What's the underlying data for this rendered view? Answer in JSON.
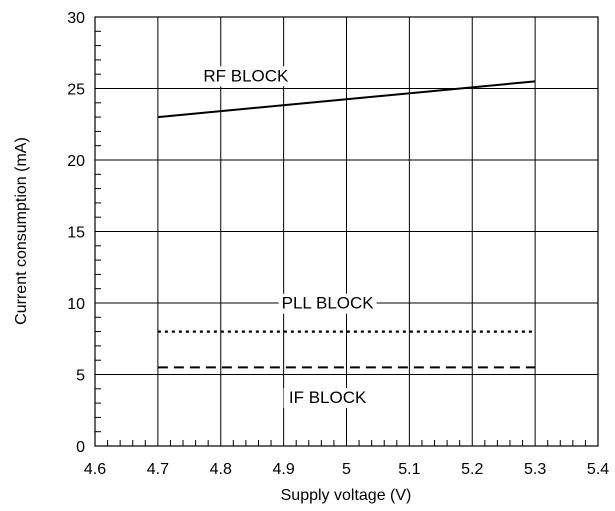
{
  "chart_data": {
    "type": "line",
    "title": "",
    "xlabel": "Supply voltage (V)",
    "ylabel": "Current consumption (mA)",
    "xlim": [
      4.6,
      5.4
    ],
    "ylim": [
      0,
      30
    ],
    "x_ticks": [
      "4.6",
      "4.7",
      "4.8",
      "4.9",
      "5",
      "5.1",
      "5.2",
      "5.3",
      "5.4"
    ],
    "y_ticks": [
      "0",
      "5",
      "10",
      "15",
      "20",
      "25",
      "30"
    ],
    "grid": true,
    "series": [
      {
        "name": "RF BLOCK",
        "style": "solid",
        "x": [
          4.7,
          5.3
        ],
        "y": [
          23.0,
          25.5
        ]
      },
      {
        "name": "PLL BLOCK",
        "style": "dotted",
        "x": [
          4.7,
          5.3
        ],
        "y": [
          8.0,
          8.0
        ]
      },
      {
        "name": "IF BLOCK",
        "style": "dashed",
        "x": [
          4.7,
          5.3
        ],
        "y": [
          5.5,
          5.5
        ]
      }
    ]
  }
}
